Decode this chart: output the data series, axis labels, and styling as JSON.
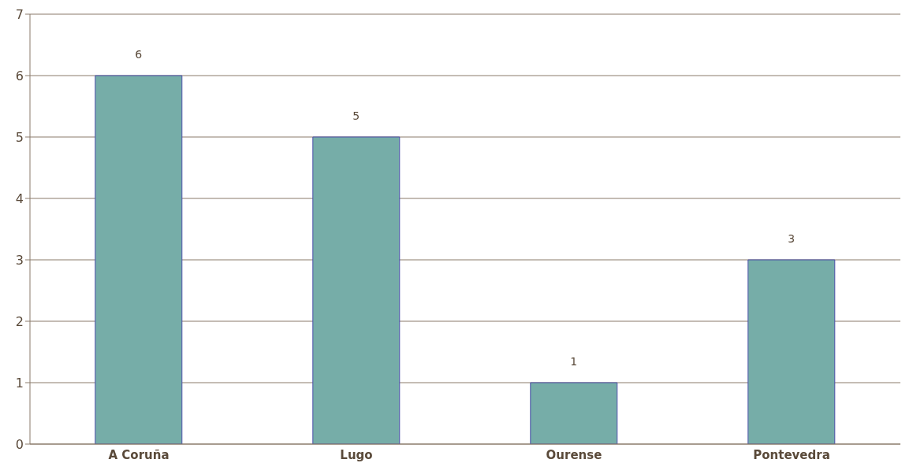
{
  "chart_data": {
    "type": "bar",
    "categories": [
      "A Coruña",
      "Lugo",
      "Ourense",
      "Pontevedra"
    ],
    "values": [
      6,
      5,
      1,
      3
    ],
    "color": "#76ada8",
    "ylim": [
      0,
      7
    ],
    "yticks": [
      0,
      1,
      2,
      3,
      4,
      5,
      6,
      7
    ],
    "grid": "y",
    "data_labels": true
  }
}
